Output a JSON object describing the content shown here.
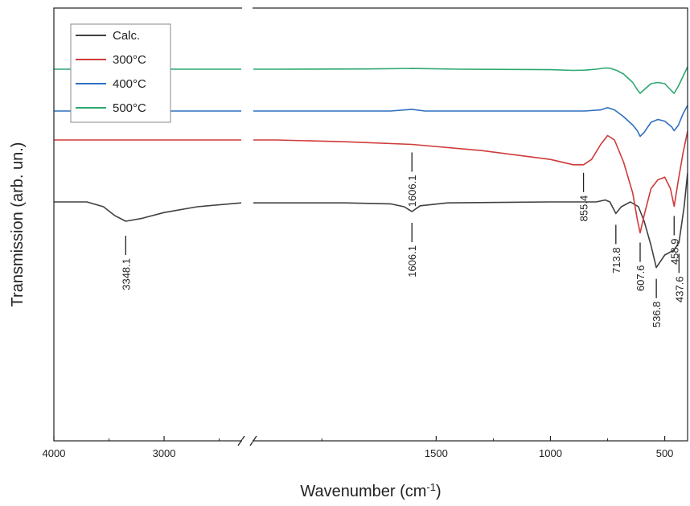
{
  "chart_data": {
    "type": "line",
    "title": "",
    "xlabel": "Wavenumber (cm",
    "xlabel_sup": "-1",
    "xlabel_end": ")",
    "ylabel": "Transmission (arb. un.)",
    "x_axis": {
      "reversed": true,
      "broken": true,
      "segments": [
        {
          "range": [
            4000,
            2300
          ],
          "ticks": [
            4000,
            3000
          ]
        },
        {
          "range": [
            2300,
            400
          ],
          "ticks": [
            1500,
            1000,
            500
          ]
        }
      ],
      "tick_labels": [
        "4000",
        "3000",
        "1500",
        "1000",
        "500"
      ]
    },
    "y_axis": {
      "tick_labels": false
    },
    "legend": {
      "position": "top-left",
      "entries": [
        {
          "name": "Calc.",
          "color": "#404040"
        },
        {
          "name": "300°C",
          "color": "#d03a3a"
        },
        {
          "name": "400°C",
          "color": "#2f6fbf"
        },
        {
          "name": "500°C",
          "color": "#2ea870"
        }
      ]
    },
    "series": [
      {
        "name": "Calc.",
        "color": "#404040",
        "points": [
          [
            4000,
            1.0
          ],
          [
            3700,
            1.0
          ],
          [
            3550,
            0.95
          ],
          [
            3450,
            0.86
          ],
          [
            3348.1,
            0.8
          ],
          [
            3200,
            0.83
          ],
          [
            3000,
            0.89
          ],
          [
            2700,
            0.95
          ],
          [
            2300,
            0.99
          ],
          [
            1900,
            0.99
          ],
          [
            1700,
            0.98
          ],
          [
            1640,
            0.95
          ],
          [
            1606.1,
            0.9
          ],
          [
            1570,
            0.96
          ],
          [
            1450,
            0.99
          ],
          [
            1000,
            1.0
          ],
          [
            800,
            1.0
          ],
          [
            760,
            1.02
          ],
          [
            740,
            1.0
          ],
          [
            713.8,
            0.88
          ],
          [
            690,
            0.95
          ],
          [
            650,
            1.0
          ],
          [
            615,
            0.95
          ],
          [
            590,
            0.8
          ],
          [
            560,
            0.55
          ],
          [
            536.8,
            0.32
          ],
          [
            500,
            0.45
          ],
          [
            460,
            0.5
          ],
          [
            437.6,
            0.58
          ],
          [
            415,
            0.95
          ],
          [
            400,
            1.3
          ]
        ]
      },
      {
        "name": "300°C",
        "color": "#d03a3a",
        "points": [
          [
            4000,
            0.0
          ],
          [
            2300,
            0.0
          ],
          [
            2200,
            0.0
          ],
          [
            1900,
            -0.02
          ],
          [
            1606.1,
            -0.05
          ],
          [
            1300,
            -0.12
          ],
          [
            1000,
            -0.22
          ],
          [
            900,
            -0.28
          ],
          [
            855.4,
            -0.28
          ],
          [
            820,
            -0.22
          ],
          [
            780,
            -0.05
          ],
          [
            750,
            0.05
          ],
          [
            720,
            0.0
          ],
          [
            680,
            -0.25
          ],
          [
            640,
            -0.6
          ],
          [
            620,
            -0.9
          ],
          [
            607.6,
            -1.05
          ],
          [
            590,
            -0.85
          ],
          [
            560,
            -0.55
          ],
          [
            530,
            -0.45
          ],
          [
            500,
            -0.42
          ],
          [
            475,
            -0.55
          ],
          [
            458.9,
            -0.75
          ],
          [
            440,
            -0.45
          ],
          [
            420,
            -0.15
          ],
          [
            400,
            0.1
          ]
        ]
      },
      {
        "name": "400°C",
        "color": "#2f6fbf",
        "points": [
          [
            4000,
            0.0
          ],
          [
            2300,
            0.0
          ],
          [
            2200,
            0.0
          ],
          [
            1700,
            0.0
          ],
          [
            1606.1,
            0.03
          ],
          [
            1550,
            0.0
          ],
          [
            1000,
            0.0
          ],
          [
            850,
            0.0
          ],
          [
            780,
            0.02
          ],
          [
            750,
            0.06
          ],
          [
            720,
            0.02
          ],
          [
            680,
            -0.1
          ],
          [
            640,
            -0.25
          ],
          [
            620,
            -0.35
          ],
          [
            607.6,
            -0.45
          ],
          [
            590,
            -0.38
          ],
          [
            560,
            -0.2
          ],
          [
            530,
            -0.15
          ],
          [
            500,
            -0.18
          ],
          [
            470,
            -0.28
          ],
          [
            458.9,
            -0.35
          ],
          [
            440,
            -0.25
          ],
          [
            420,
            -0.05
          ],
          [
            400,
            0.1
          ]
        ]
      },
      {
        "name": "500°C",
        "color": "#2ea870",
        "points": [
          [
            4000,
            0.0
          ],
          [
            2300,
            0.0
          ],
          [
            2200,
            0.0
          ],
          [
            1800,
            0.01
          ],
          [
            1606.1,
            0.03
          ],
          [
            1400,
            0.0
          ],
          [
            1000,
            -0.02
          ],
          [
            900,
            -0.05
          ],
          [
            850,
            -0.04
          ],
          [
            800,
            0.0
          ],
          [
            760,
            0.05
          ],
          [
            740,
            0.04
          ],
          [
            710,
            -0.05
          ],
          [
            680,
            -0.2
          ],
          [
            640,
            -0.55
          ],
          [
            620,
            -0.85
          ],
          [
            607.6,
            -1.0
          ],
          [
            590,
            -0.85
          ],
          [
            560,
            -0.6
          ],
          [
            530,
            -0.55
          ],
          [
            500,
            -0.6
          ],
          [
            470,
            -0.9
          ],
          [
            458.9,
            -1.0
          ],
          [
            440,
            -0.7
          ],
          [
            420,
            -0.3
          ],
          [
            400,
            0.1
          ]
        ]
      }
    ],
    "annotations": [
      {
        "label": "3348.1",
        "x": 3348.1,
        "series": "Calc."
      },
      {
        "label": "1606.1",
        "x": 1606.1,
        "series": "Calc."
      },
      {
        "label": "713.8",
        "x": 713.8,
        "series": "Calc."
      },
      {
        "label": "536.8",
        "x": 536.8,
        "series": "Calc."
      },
      {
        "label": "437.6",
        "x": 437.6,
        "series": "Calc."
      },
      {
        "label": "1606.1",
        "x": 1606.1,
        "series": "300°C"
      },
      {
        "label": "855.4",
        "x": 855.4,
        "series": "300°C"
      },
      {
        "label": "607.6",
        "x": 607.6,
        "series": "300°C"
      },
      {
        "label": "458.9",
        "x": 458.9,
        "series": "300°C"
      }
    ]
  }
}
